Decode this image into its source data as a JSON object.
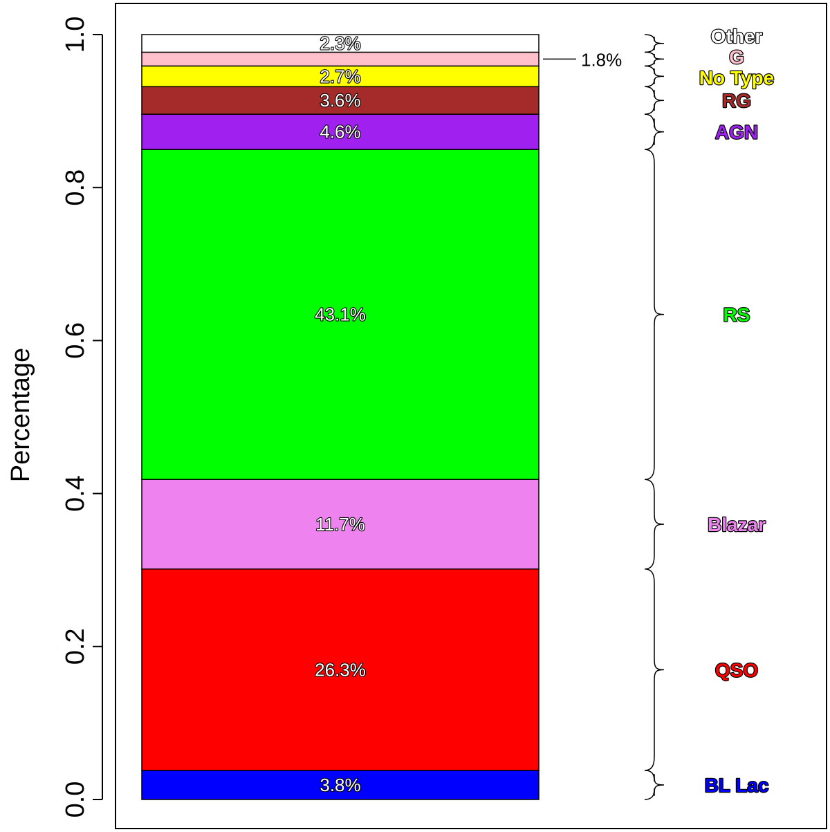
{
  "chart_data": {
    "type": "bar",
    "stacked": true,
    "ylabel": "Percentage",
    "ylim": [
      0,
      1
    ],
    "yticks": [
      "0.0",
      "0.2",
      "0.4",
      "0.6",
      "0.8",
      "1.0"
    ],
    "categories": [
      "BL Lac",
      "QSO",
      "Blazar",
      "RS",
      "AGN",
      "RG",
      "No Type",
      "G",
      "Other"
    ],
    "values": [
      0.038,
      0.263,
      0.117,
      0.431,
      0.046,
      0.036,
      0.027,
      0.018,
      0.023
    ],
    "value_labels": [
      "3.8%",
      "26.3%",
      "11.7%",
      "43.1%",
      "4.6%",
      "3.6%",
      "2.7%",
      "1.8%",
      "2.3%"
    ],
    "colors": [
      "#0000ff",
      "#ff0000",
      "#ee82ee",
      "#00ff00",
      "#a020f0",
      "#a52a2a",
      "#ffff00",
      "#ffc0cb",
      "#ffffff"
    ],
    "external_label_index": 7
  }
}
